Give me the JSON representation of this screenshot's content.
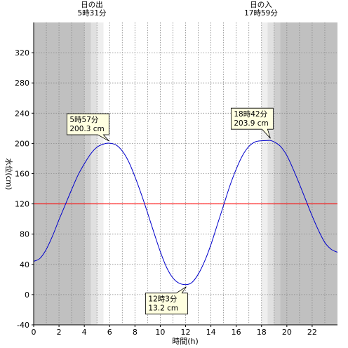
{
  "chart_data": {
    "type": "line",
    "xlabel": "時間(h)",
    "ylabel": "水位(cm)",
    "xlim": [
      0,
      24
    ],
    "ylim": [
      -40,
      360
    ],
    "x_ticks": [
      0,
      2,
      4,
      6,
      8,
      10,
      12,
      14,
      16,
      18,
      20,
      22
    ],
    "y_ticks": [
      -40,
      0,
      40,
      80,
      120,
      160,
      200,
      240,
      280,
      320
    ],
    "grid": true,
    "reference_line": {
      "y": 120,
      "color": "#ff0000"
    },
    "sunrise": {
      "title": "日の出",
      "time": "5時31分",
      "x": 5.52
    },
    "sunset": {
      "title": "日の入",
      "time": "17時59分",
      "x": 17.98
    },
    "series": [
      {
        "color": "#0000cc",
        "x": [
          0,
          0.5,
          1,
          1.5,
          2,
          2.5,
          3,
          3.5,
          4,
          4.5,
          5,
          5.5,
          5.95,
          6.5,
          7,
          7.5,
          8,
          8.5,
          9,
          9.5,
          10,
          10.5,
          11,
          11.5,
          12.05,
          12.5,
          13,
          13.5,
          14,
          14.5,
          15,
          15.5,
          16,
          16.5,
          17,
          17.5,
          18,
          18.5,
          18.7,
          19,
          19.5,
          20,
          20.5,
          21,
          21.5,
          22,
          22.5,
          23,
          23.5,
          24
        ],
        "y": [
          44,
          48,
          60,
          78,
          99,
          119,
          139,
          158,
          173,
          186,
          195,
          199,
          200.3,
          198,
          190,
          176,
          156,
          133,
          108,
          82,
          57,
          36,
          22,
          15,
          13.2,
          16,
          27,
          44,
          66,
          92,
          118,
          144,
          166,
          184,
          196,
          202,
          203.5,
          203.8,
          203.9,
          202,
          196,
          184,
          166,
          146,
          125,
          104,
          85,
          69,
          60,
          56
        ]
      }
    ],
    "annotations": [
      {
        "time": "5時57分",
        "value": "200.3 cm",
        "x": 5.95,
        "y": 200.3
      },
      {
        "time": "12時3分",
        "value": "13.2 cm",
        "x": 12.05,
        "y": 13.2
      },
      {
        "time": "18時42分",
        "value": "203.9 cm",
        "x": 18.7,
        "y": 203.9
      }
    ]
  }
}
